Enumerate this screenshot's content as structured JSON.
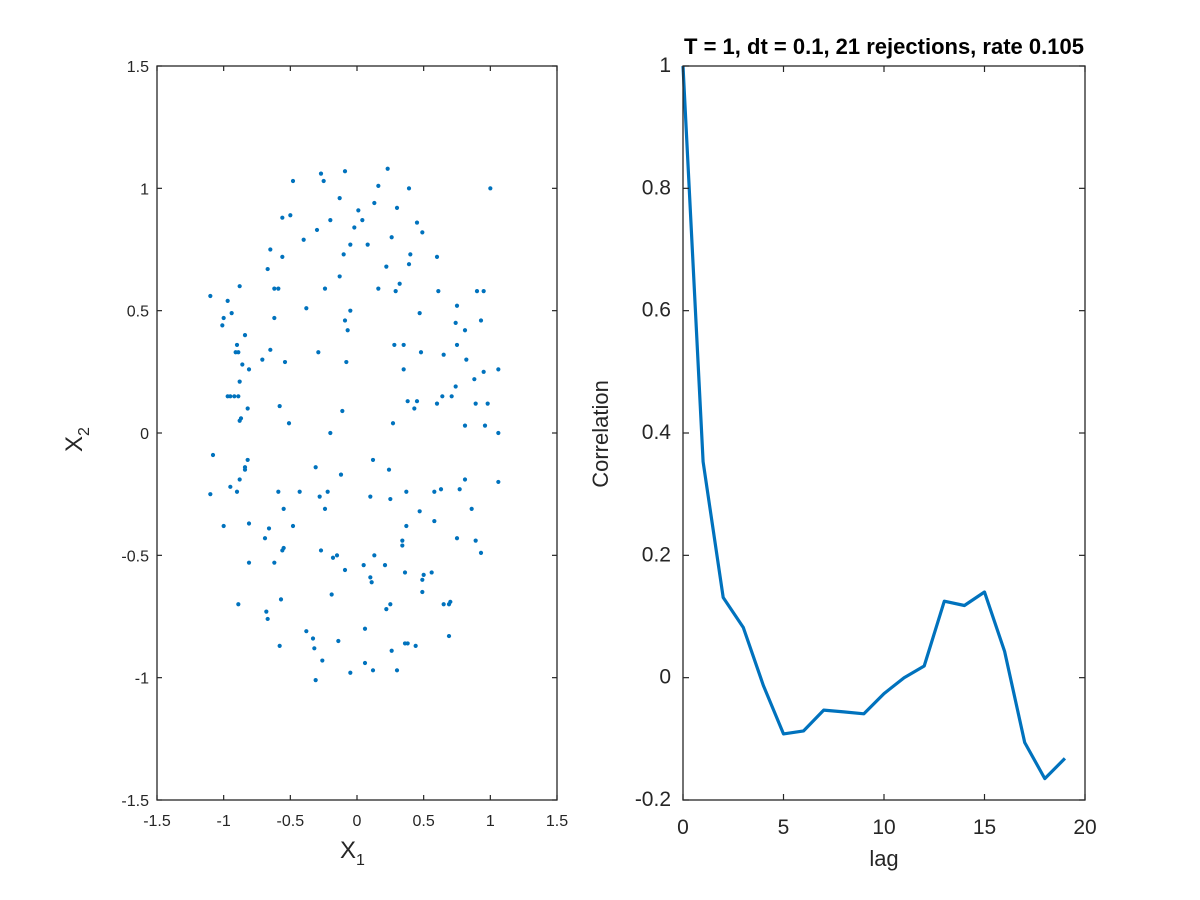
{
  "chart_data": [
    {
      "type": "scatter",
      "xlabel_main": "X",
      "xlabel_sub": "1",
      "ylabel_main": "X",
      "ylabel_sub": "2",
      "xlim": [
        -1.5,
        1.5
      ],
      "ylim": [
        -1.5,
        1.5
      ],
      "xticks": [
        -1.5,
        -1,
        -0.5,
        0,
        0.5,
        1,
        1.5
      ],
      "yticks": [
        -1.5,
        -1,
        -0.5,
        0,
        0.5,
        1,
        1.5
      ],
      "xtick_labels": [
        "-1.5",
        "-1",
        "-0.5",
        "0",
        "0.5",
        "1",
        "1.5"
      ],
      "ytick_labels": [
        "-1.5",
        "-1",
        "-0.5",
        "0",
        "0.5",
        "1",
        "1.5"
      ],
      "marker_color": "#0072BD",
      "grid": false,
      "points": [
        [
          -0.27,
          1.06
        ],
        [
          -0.09,
          1.07
        ],
        [
          0.23,
          1.08
        ],
        [
          -0.48,
          1.03
        ],
        [
          -0.25,
          1.03
        ],
        [
          0.16,
          1.01
        ],
        [
          0.39,
          1.0
        ],
        [
          1.0,
          1.0
        ],
        [
          -0.13,
          0.96
        ],
        [
          0.01,
          0.91
        ],
        [
          0.13,
          0.94
        ],
        [
          0.3,
          0.92
        ],
        [
          -0.56,
          0.88
        ],
        [
          -0.5,
          0.89
        ],
        [
          -0.2,
          0.87
        ],
        [
          0.04,
          0.87
        ],
        [
          0.45,
          0.86
        ],
        [
          0.49,
          0.82
        ],
        [
          -0.3,
          0.83
        ],
        [
          -0.02,
          0.84
        ],
        [
          0.26,
          0.8
        ],
        [
          -0.4,
          0.79
        ],
        [
          -0.05,
          0.77
        ],
        [
          0.08,
          0.77
        ],
        [
          0.6,
          0.72
        ],
        [
          -0.65,
          0.75
        ],
        [
          -0.56,
          0.72
        ],
        [
          0.4,
          0.73
        ],
        [
          -0.1,
          0.73
        ],
        [
          0.22,
          0.68
        ],
        [
          -0.67,
          0.67
        ],
        [
          0.39,
          0.69
        ],
        [
          -0.13,
          0.64
        ],
        [
          0.16,
          0.59
        ],
        [
          0.32,
          0.61
        ],
        [
          -0.62,
          0.59
        ],
        [
          -0.59,
          0.59
        ],
        [
          -0.24,
          0.59
        ],
        [
          0.29,
          0.58
        ],
        [
          0.61,
          0.58
        ],
        [
          -0.97,
          0.54
        ],
        [
          -0.88,
          0.6
        ],
        [
          0.9,
          0.58
        ],
        [
          0.95,
          0.58
        ],
        [
          -1.1,
          0.56
        ],
        [
          -0.38,
          0.51
        ],
        [
          -0.05,
          0.5
        ],
        [
          0.47,
          0.49
        ],
        [
          -0.09,
          0.46
        ],
        [
          0.75,
          0.52
        ],
        [
          0.93,
          0.46
        ],
        [
          -1.0,
          0.47
        ],
        [
          -0.94,
          0.49
        ],
        [
          -0.62,
          0.47
        ],
        [
          -0.07,
          0.42
        ],
        [
          -1.01,
          0.44
        ],
        [
          0.81,
          0.42
        ],
        [
          0.74,
          0.45
        ],
        [
          -0.84,
          0.4
        ],
        [
          -0.9,
          0.36
        ],
        [
          0.28,
          0.36
        ],
        [
          0.35,
          0.36
        ],
        [
          -0.91,
          0.33
        ],
        [
          -0.89,
          0.33
        ],
        [
          -0.65,
          0.34
        ],
        [
          -0.29,
          0.33
        ],
        [
          0.75,
          0.36
        ],
        [
          0.48,
          0.33
        ],
        [
          0.65,
          0.32
        ],
        [
          -0.71,
          0.3
        ],
        [
          -0.08,
          0.29
        ],
        [
          -0.54,
          0.29
        ],
        [
          -0.86,
          0.28
        ],
        [
          0.35,
          0.26
        ],
        [
          0.95,
          0.25
        ],
        [
          0.82,
          0.3
        ],
        [
          1.06,
          0.26
        ],
        [
          -0.81,
          0.26
        ],
        [
          -0.88,
          0.21
        ],
        [
          0.74,
          0.19
        ],
        [
          0.88,
          0.22
        ],
        [
          -0.95,
          0.15
        ],
        [
          -0.92,
          0.15
        ],
        [
          -0.89,
          0.15
        ],
        [
          -0.97,
          0.15
        ],
        [
          0.71,
          0.15
        ],
        [
          0.89,
          0.12
        ],
        [
          0.38,
          0.13
        ],
        [
          -0.58,
          0.11
        ],
        [
          0.45,
          0.13
        ],
        [
          0.43,
          0.1
        ],
        [
          -0.82,
          0.1
        ],
        [
          0.64,
          0.15
        ],
        [
          0.6,
          0.12
        ],
        [
          0.98,
          0.12
        ],
        [
          -0.11,
          0.09
        ],
        [
          -0.87,
          0.06
        ],
        [
          -0.88,
          0.05
        ],
        [
          -0.51,
          0.04
        ],
        [
          0.27,
          0.04
        ],
        [
          0.81,
          0.03
        ],
        [
          0.96,
          0.03
        ],
        [
          -0.2,
          0.0
        ],
        [
          1.06,
          0.0
        ],
        [
          -1.08,
          -0.09
        ],
        [
          0.12,
          -0.11
        ],
        [
          -0.82,
          -0.11
        ],
        [
          -0.84,
          -0.14
        ],
        [
          -0.31,
          -0.14
        ],
        [
          -0.84,
          -0.15
        ],
        [
          0.24,
          -0.15
        ],
        [
          -0.88,
          -0.19
        ],
        [
          -0.12,
          -0.17
        ],
        [
          -0.95,
          -0.22
        ],
        [
          0.81,
          -0.19
        ],
        [
          1.06,
          -0.2
        ],
        [
          -0.9,
          -0.24
        ],
        [
          -0.59,
          -0.24
        ],
        [
          -1.1,
          -0.25
        ],
        [
          -0.43,
          -0.24
        ],
        [
          -0.22,
          -0.24
        ],
        [
          0.37,
          -0.24
        ],
        [
          0.58,
          -0.24
        ],
        [
          0.63,
          -0.23
        ],
        [
          0.77,
          -0.23
        ],
        [
          -0.28,
          -0.26
        ],
        [
          0.1,
          -0.26
        ],
        [
          0.25,
          -0.27
        ],
        [
          -0.55,
          -0.31
        ],
        [
          -0.24,
          -0.31
        ],
        [
          0.47,
          -0.32
        ],
        [
          0.86,
          -0.31
        ],
        [
          -1.0,
          -0.38
        ],
        [
          -0.81,
          -0.37
        ],
        [
          -0.66,
          -0.39
        ],
        [
          0.37,
          -0.38
        ],
        [
          0.58,
          -0.36
        ],
        [
          -0.48,
          -0.38
        ],
        [
          -0.69,
          -0.43
        ],
        [
          0.75,
          -0.43
        ],
        [
          0.34,
          -0.44
        ],
        [
          0.89,
          -0.44
        ],
        [
          0.34,
          -0.46
        ],
        [
          -0.27,
          -0.48
        ],
        [
          -0.55,
          -0.47
        ],
        [
          -0.56,
          -0.48
        ],
        [
          -0.15,
          -0.5
        ],
        [
          0.13,
          -0.5
        ],
        [
          -0.18,
          -0.51
        ],
        [
          -0.62,
          -0.53
        ],
        [
          0.93,
          -0.49
        ],
        [
          0.21,
          -0.54
        ],
        [
          0.05,
          -0.54
        ],
        [
          -0.09,
          -0.56
        ],
        [
          0.49,
          -0.6
        ],
        [
          -0.81,
          -0.53
        ],
        [
          0.36,
          -0.57
        ],
        [
          0.56,
          -0.57
        ],
        [
          0.1,
          -0.59
        ],
        [
          0.5,
          -0.58
        ],
        [
          0.11,
          -0.61
        ],
        [
          -0.19,
          -0.66
        ],
        [
          0.49,
          -0.65
        ],
        [
          0.7,
          -0.69
        ],
        [
          0.65,
          -0.7
        ],
        [
          -0.57,
          -0.68
        ],
        [
          -0.89,
          -0.7
        ],
        [
          0.25,
          -0.7
        ],
        [
          0.69,
          -0.7
        ],
        [
          -0.68,
          -0.73
        ],
        [
          0.22,
          -0.72
        ],
        [
          -0.67,
          -0.76
        ],
        [
          0.06,
          -0.8
        ],
        [
          -0.38,
          -0.81
        ],
        [
          0.69,
          -0.83
        ],
        [
          -0.33,
          -0.84
        ],
        [
          -0.58,
          -0.87
        ],
        [
          0.38,
          -0.86
        ],
        [
          0.36,
          -0.86
        ],
        [
          -0.14,
          -0.85
        ],
        [
          0.44,
          -0.87
        ],
        [
          0.26,
          -0.89
        ],
        [
          -0.32,
          -0.88
        ],
        [
          -0.26,
          -0.93
        ],
        [
          0.06,
          -0.94
        ],
        [
          0.3,
          -0.97
        ],
        [
          0.12,
          -0.97
        ],
        [
          -0.05,
          -0.98
        ],
        [
          -0.31,
          -1.01
        ]
      ]
    },
    {
      "type": "line",
      "title": "T = 1, dt = 0.1, 21 rejections, rate 0.105",
      "xlabel": "lag",
      "ylabel": "Correlation",
      "xlim": [
        0,
        20
      ],
      "ylim": [
        -0.2,
        1
      ],
      "xticks": [
        0,
        5,
        10,
        15,
        20
      ],
      "yticks": [
        -0.2,
        0,
        0.2,
        0.4,
        0.6,
        0.8,
        1
      ],
      "xtick_labels": [
        "0",
        "5",
        "10",
        "15",
        "20"
      ],
      "ytick_labels": [
        "-0.2",
        "0",
        "0.2",
        "0.4",
        "0.6",
        "0.8",
        "1"
      ],
      "line_color": "#0072BD",
      "grid": false,
      "x": [
        0,
        1,
        2,
        3,
        4,
        5,
        6,
        7,
        8,
        9,
        10,
        11,
        12,
        13,
        14,
        15,
        16,
        17,
        18,
        19
      ],
      "y": [
        1.0,
        0.353,
        0.131,
        0.082,
        -0.013,
        -0.092,
        -0.087,
        -0.053,
        -0.056,
        -0.059,
        -0.026,
        0.0,
        0.019,
        0.125,
        0.118,
        0.14,
        0.043,
        -0.106,
        -0.165,
        -0.132
      ]
    }
  ]
}
